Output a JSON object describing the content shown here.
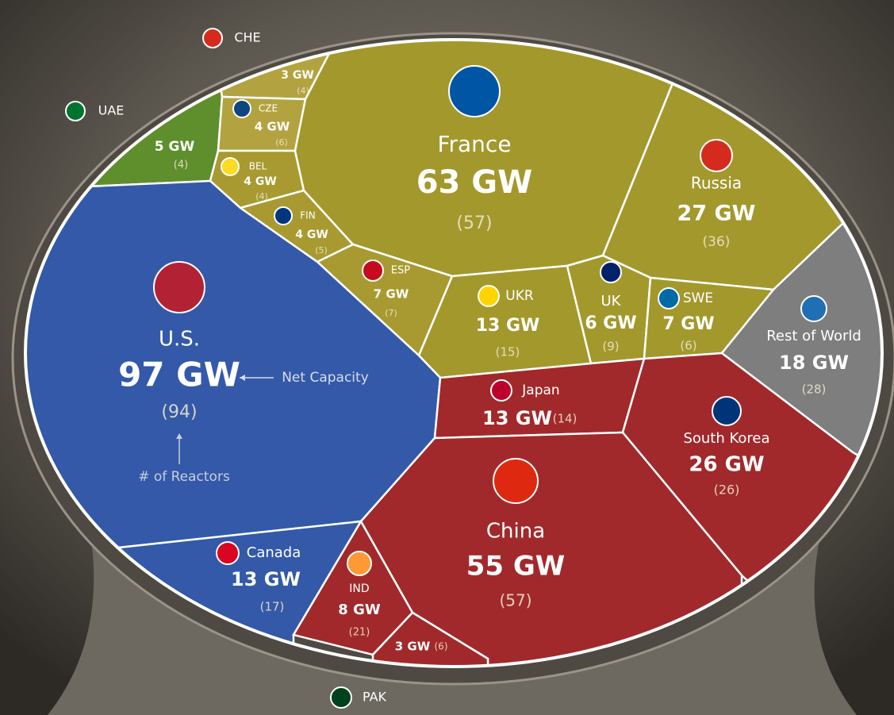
{
  "chart_data": {
    "type": "voronoi",
    "categories": [
      "CHE",
      "UAE",
      "CZE",
      "BEL",
      "FIN",
      "France",
      "Russia",
      "ESP",
      "UKR",
      "UK",
      "SWE",
      "Rest of World",
      "U.S.",
      "Japan",
      "South Korea",
      "China",
      "Canada",
      "IND",
      "PAK"
    ],
    "series": [
      {
        "name": "Net Capacity",
        "values": [
          3,
          5,
          4,
          4,
          4,
          63,
          27,
          7,
          13,
          6,
          7,
          18,
          97,
          13,
          26,
          55,
          13,
          8,
          3
        ],
        "value_labels": [
          "3 GW",
          "5 GW",
          "4 GW",
          "4 GW",
          "4 GW",
          "63 GW",
          "27 GW",
          "7 GW",
          "13 GW",
          "6 GW",
          "7 GW",
          "18 GW",
          "97 GW",
          "13 GW",
          "26 GW",
          "55 GW",
          "13 GW",
          "8 GW",
          "3 GW"
        ],
        "colors": [
          "#b3a340",
          "#5e8f2c",
          "#b3a340",
          "#a89a30",
          "#a89a30",
          "#a3982c",
          "#a3982c",
          "#a89a30",
          "#a3982c",
          "#a3982c",
          "#a3982c",
          "#7e7e7e",
          "#3359a8",
          "#a1292b",
          "#a1292b",
          "#a1292b",
          "#3359a8",
          "#a1292b",
          "#a1292b"
        ]
      },
      {
        "name": "# of Reactors",
        "values": [
          4,
          4,
          6,
          4,
          5,
          57,
          36,
          7,
          15,
          9,
          6,
          28,
          94,
          14,
          26,
          57,
          17,
          21,
          6
        ],
        "value_labels": [
          "(4)",
          "(4)",
          "(6)",
          "(4)",
          "(5)",
          "(57)",
          "(36)",
          "(7)",
          "(15)",
          "(9)",
          "(6)",
          "(28)",
          "(94)",
          "(14)",
          "(26)",
          "(57)",
          "(17)",
          "(21)",
          "(6)"
        ]
      }
    ]
  }
}
